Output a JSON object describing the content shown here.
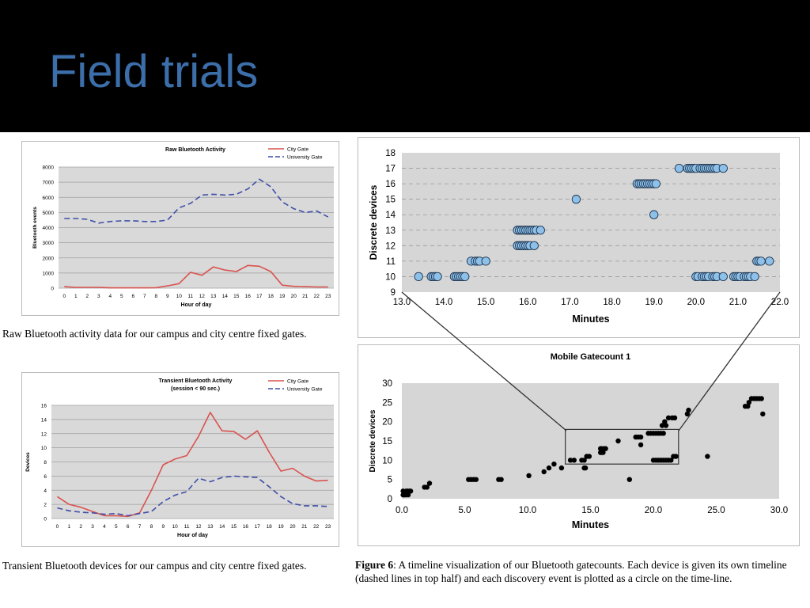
{
  "slide": {
    "title": "Field trials"
  },
  "captions": {
    "raw": "Raw Bluetooth activity data for our campus and city centre fixed gates.",
    "transient": "Transient Bluetooth devices for our campus and city centre fixed gates.",
    "figure_label": "Figure 6",
    "figure_text": ": A timeline visualization of our Bluetooth gatecounts.  Each device is given its own timeline (dashed lines in top half) and each discovery event is plotted as a circle on the time-line."
  },
  "colors": {
    "city": "#d9534f",
    "university": "#3f4fa8",
    "dot": "#8ec1ea",
    "title": "#3c6eaa"
  },
  "chart_data": [
    {
      "id": "raw",
      "type": "line",
      "title": "Raw Bluetooth Activity",
      "xlabel": "Hour of day",
      "ylabel": "Bluetooth events",
      "categories": [
        "0",
        "1",
        "2",
        "3",
        "4",
        "5",
        "6",
        "7",
        "8",
        "9",
        "10",
        "11",
        "12",
        "13",
        "14",
        "15",
        "16",
        "17",
        "18",
        "19",
        "20",
        "21",
        "22",
        "23"
      ],
      "ylim": [
        0,
        8000
      ],
      "yticks": [
        0,
        1000,
        2000,
        3000,
        4000,
        5000,
        6000,
        7000,
        8000
      ],
      "grid": true,
      "legend": "top-right",
      "series": [
        {
          "name": "City Gate",
          "style": "solid",
          "values": [
            100,
            50,
            50,
            50,
            20,
            20,
            20,
            20,
            30,
            150,
            300,
            1050,
            850,
            1400,
            1200,
            1100,
            1500,
            1450,
            1100,
            200,
            120,
            100,
            80,
            80
          ]
        },
        {
          "name": "University Gate",
          "style": "dashed",
          "values": [
            4600,
            4600,
            4550,
            4300,
            4400,
            4450,
            4450,
            4400,
            4400,
            4500,
            5300,
            5600,
            6150,
            6200,
            6150,
            6200,
            6550,
            7200,
            6700,
            5700,
            5250,
            5000,
            5100,
            4700
          ]
        }
      ]
    },
    {
      "id": "transient",
      "type": "line",
      "title": "Transient Bluetooth Activity",
      "subtitle": "(session < 90 sec.)",
      "xlabel": "Hour of day",
      "ylabel": "Devices",
      "categories": [
        "0",
        "1",
        "2",
        "3",
        "4",
        "5",
        "6",
        "7",
        "8",
        "9",
        "10",
        "11",
        "12",
        "13",
        "14",
        "15",
        "16",
        "17",
        "18",
        "19",
        "20",
        "21",
        "22",
        "23"
      ],
      "ylim": [
        0,
        16
      ],
      "yticks": [
        0,
        2,
        4,
        6,
        8,
        10,
        12,
        14,
        16
      ],
      "grid": true,
      "legend": "top-right",
      "series": [
        {
          "name": "City Gate",
          "style": "solid",
          "values": [
            3.1,
            2.0,
            1.6,
            1.0,
            0.4,
            0.4,
            0.3,
            0.8,
            4.0,
            7.6,
            8.4,
            8.9,
            11.6,
            15.0,
            12.4,
            12.3,
            11.2,
            12.4,
            9.4,
            6.7,
            7.1,
            6.0,
            5.3,
            5.4
          ]
        },
        {
          "name": "University Gate",
          "style": "dashed",
          "values": [
            1.5,
            1.1,
            0.9,
            0.8,
            0.6,
            0.7,
            0.4,
            0.7,
            1.0,
            2.4,
            3.3,
            3.8,
            5.7,
            5.2,
            5.8,
            6.0,
            5.9,
            5.8,
            4.5,
            3.1,
            2.1,
            1.8,
            1.8,
            1.7
          ]
        }
      ]
    },
    {
      "id": "zoom",
      "type": "scatter",
      "xlabel": "Minutes",
      "ylabel": "Discrete devices",
      "xlim": [
        13.0,
        22.0
      ],
      "ylim": [
        9,
        18
      ],
      "xticks": [
        "13.0",
        "14.0",
        "15.0",
        "16.0",
        "17.0",
        "18.0",
        "19.0",
        "20.0",
        "21.0",
        "22.0"
      ],
      "yticks": [
        9,
        10,
        11,
        12,
        13,
        14,
        15,
        16,
        17,
        18
      ],
      "grid": "dashed",
      "points": [
        [
          13.4,
          10
        ],
        [
          13.7,
          10
        ],
        [
          13.75,
          10
        ],
        [
          13.8,
          10
        ],
        [
          13.85,
          10
        ],
        [
          14.25,
          10
        ],
        [
          14.3,
          10
        ],
        [
          14.35,
          10
        ],
        [
          14.4,
          10
        ],
        [
          14.45,
          10
        ],
        [
          14.5,
          10
        ],
        [
          14.65,
          11
        ],
        [
          14.75,
          11
        ],
        [
          14.8,
          11
        ],
        [
          14.85,
          11
        ],
        [
          15.0,
          11
        ],
        [
          15.75,
          12
        ],
        [
          15.8,
          12
        ],
        [
          15.85,
          12
        ],
        [
          15.9,
          12
        ],
        [
          15.95,
          12
        ],
        [
          16.0,
          12
        ],
        [
          16.05,
          12
        ],
        [
          16.15,
          12
        ],
        [
          15.75,
          13
        ],
        [
          15.8,
          13
        ],
        [
          15.85,
          13
        ],
        [
          15.9,
          13
        ],
        [
          15.95,
          13
        ],
        [
          16.0,
          13
        ],
        [
          16.05,
          13
        ],
        [
          16.1,
          13
        ],
        [
          16.15,
          13
        ],
        [
          16.2,
          13
        ],
        [
          16.3,
          13
        ],
        [
          17.15,
          15
        ],
        [
          18.6,
          16
        ],
        [
          18.65,
          16
        ],
        [
          18.7,
          16
        ],
        [
          18.75,
          16
        ],
        [
          18.8,
          16
        ],
        [
          18.85,
          16
        ],
        [
          18.9,
          16
        ],
        [
          18.95,
          16
        ],
        [
          19.0,
          16
        ],
        [
          19.05,
          16
        ],
        [
          19.0,
          14
        ],
        [
          19.6,
          17
        ],
        [
          19.8,
          17
        ],
        [
          19.85,
          17
        ],
        [
          19.9,
          17
        ],
        [
          19.95,
          17
        ],
        [
          20.0,
          17
        ],
        [
          20.1,
          17
        ],
        [
          20.15,
          17
        ],
        [
          20.2,
          17
        ],
        [
          20.25,
          17
        ],
        [
          20.3,
          17
        ],
        [
          20.35,
          17
        ],
        [
          20.4,
          17
        ],
        [
          20.45,
          17
        ],
        [
          20.5,
          17
        ],
        [
          20.65,
          17
        ],
        [
          20.0,
          10
        ],
        [
          20.05,
          10
        ],
        [
          20.15,
          10
        ],
        [
          20.2,
          10
        ],
        [
          20.25,
          10
        ],
        [
          20.3,
          10
        ],
        [
          20.4,
          10
        ],
        [
          20.45,
          10
        ],
        [
          20.5,
          10
        ],
        [
          20.65,
          10
        ],
        [
          20.9,
          10
        ],
        [
          20.95,
          10
        ],
        [
          21.0,
          10
        ],
        [
          21.05,
          10
        ],
        [
          21.15,
          10
        ],
        [
          21.2,
          10
        ],
        [
          21.25,
          10
        ],
        [
          21.3,
          10
        ],
        [
          21.4,
          10
        ],
        [
          21.45,
          11
        ],
        [
          21.5,
          11
        ],
        [
          21.55,
          11
        ],
        [
          21.75,
          11
        ]
      ]
    },
    {
      "id": "gatecount",
      "type": "scatter",
      "title": "Mobile Gatecount 1",
      "xlabel": "Minutes",
      "ylabel": "Discrete devices",
      "xlim": [
        0,
        30
      ],
      "ylim": [
        0,
        30
      ],
      "xticks": [
        "0.0",
        "5.0",
        "10.0",
        "15.0",
        "20.0",
        "25.0",
        "30.0"
      ],
      "yticks": [
        0,
        5,
        10,
        15,
        20,
        25,
        30
      ],
      "zoom_box": {
        "x": [
          13.0,
          22.0
        ],
        "y": [
          9,
          18
        ]
      },
      "points": [
        [
          0.1,
          1
        ],
        [
          0.2,
          1
        ],
        [
          0.3,
          1
        ],
        [
          0.35,
          2
        ],
        [
          0.45,
          2
        ],
        [
          0.6,
          2
        ],
        [
          0.1,
          2
        ],
        [
          0.2,
          1.5
        ],
        [
          0.5,
          1
        ],
        [
          0.7,
          2
        ],
        [
          1.8,
          3
        ],
        [
          2.0,
          3
        ],
        [
          2.2,
          4
        ],
        [
          5.3,
          5
        ],
        [
          5.5,
          5
        ],
        [
          5.7,
          5
        ],
        [
          5.9,
          5
        ],
        [
          7.7,
          5
        ],
        [
          7.9,
          5
        ],
        [
          10.1,
          6
        ],
        [
          11.3,
          7
        ],
        [
          11.7,
          8
        ],
        [
          12.1,
          9
        ],
        [
          12.7,
          8
        ],
        [
          13.4,
          10
        ],
        [
          13.7,
          10
        ],
        [
          14.3,
          10
        ],
        [
          14.5,
          10
        ],
        [
          14.7,
          11
        ],
        [
          14.9,
          11
        ],
        [
          14.5,
          8
        ],
        [
          14.6,
          8
        ],
        [
          15.8,
          12
        ],
        [
          15.9,
          12
        ],
        [
          16.0,
          12
        ],
        [
          15.8,
          13
        ],
        [
          15.9,
          13
        ],
        [
          16.1,
          13
        ],
        [
          16.2,
          13
        ],
        [
          17.2,
          15
        ],
        [
          18.6,
          16
        ],
        [
          18.8,
          16
        ],
        [
          19.0,
          16
        ],
        [
          19.0,
          14
        ],
        [
          18.1,
          5
        ],
        [
          19.6,
          17
        ],
        [
          19.8,
          17
        ],
        [
          20.0,
          17
        ],
        [
          20.2,
          17
        ],
        [
          20.4,
          17
        ],
        [
          20.6,
          17
        ],
        [
          20.8,
          17
        ],
        [
          20.0,
          10
        ],
        [
          20.2,
          10
        ],
        [
          20.4,
          10
        ],
        [
          20.6,
          10
        ],
        [
          20.8,
          10
        ],
        [
          21.0,
          10
        ],
        [
          21.2,
          10
        ],
        [
          21.4,
          10
        ],
        [
          21.6,
          11
        ],
        [
          21.8,
          11
        ],
        [
          20.7,
          19
        ],
        [
          20.9,
          20
        ],
        [
          21.0,
          19
        ],
        [
          21.2,
          21
        ],
        [
          21.5,
          21
        ],
        [
          21.7,
          21
        ],
        [
          22.7,
          22
        ],
        [
          22.8,
          23
        ],
        [
          24.3,
          11
        ],
        [
          27.3,
          24
        ],
        [
          27.5,
          24
        ],
        [
          27.6,
          25
        ],
        [
          27.8,
          26
        ],
        [
          28.0,
          26
        ],
        [
          28.2,
          26
        ],
        [
          28.4,
          26
        ],
        [
          28.6,
          26
        ],
        [
          28.7,
          22
        ]
      ]
    }
  ]
}
